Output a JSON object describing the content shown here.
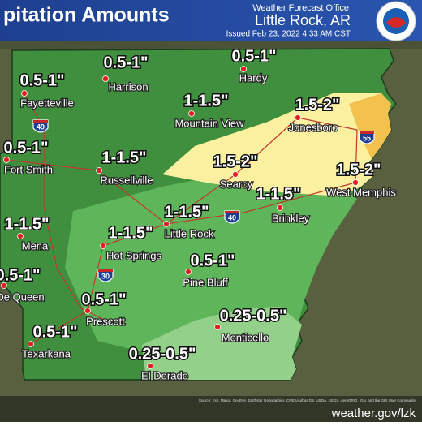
{
  "header": {
    "title": "pitation Amounts",
    "office": "Weather Forecast Office",
    "location": "Little Rock, AR",
    "issued": "Issued Feb 23, 2022 4:33 AM CST"
  },
  "labels": [
    {
      "amount": "0.5-1\"",
      "city": "Harrison"
    },
    {
      "amount": "0.5-1\"",
      "city": "Hardy"
    },
    {
      "amount": "0.5-1\"",
      "city": "Fayetteville"
    },
    {
      "amount": "1-1.5\"",
      "city": "Mountain View"
    },
    {
      "amount": "1.5-2\"",
      "city": "Jonesboro"
    },
    {
      "amount": "0.5-1\"",
      "city": "Fort Smith"
    },
    {
      "amount": "1-1.5\"",
      "city": "Russellville"
    },
    {
      "amount": "1.5-2\"",
      "city": "Searcy"
    },
    {
      "amount": "1.5-2\"",
      "city": "West Memphis"
    },
    {
      "amount": "1-1.5\"",
      "city": "Brinkley"
    },
    {
      "amount": "1-1.5\"",
      "city": "Little Rock"
    },
    {
      "amount": "1-1.5\"",
      "city": "Mena"
    },
    {
      "amount": "1-1.5\"",
      "city": "Hot Springs"
    },
    {
      "amount": "0.5-1\"",
      "city": "Pine Bluff"
    },
    {
      "amount": "0.5-1\"",
      "city": "De Queen"
    },
    {
      "amount": "0.5-1\"",
      "city": "Prescott"
    },
    {
      "amount": "0.25-0.5\"",
      "city": "Monticello"
    },
    {
      "amount": "0.5-1\"",
      "city": "Texarkana"
    },
    {
      "amount": "0.25-0.5\"",
      "city": "El Dorado"
    }
  ],
  "interstates": [
    "49",
    "55",
    "40",
    "30"
  ],
  "footer": {
    "source": "Source: Esri, Maxar, GeoEye, Earthstar Geographics, CNES/Airbus DS, USDA, USGS, AeroGRID, IGN, and the GIS User Community",
    "url": "weather.gov/lzk"
  }
}
